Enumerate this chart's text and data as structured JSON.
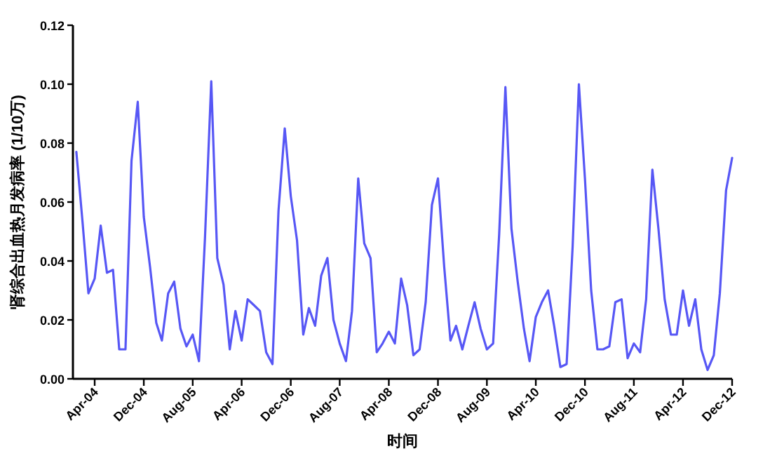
{
  "chart_data": {
    "type": "line",
    "xlabel": "时间",
    "ylabel": "肾综合出血热月发病率 (1/10万)",
    "x": [
      "2004-01",
      "2004-02",
      "2004-03",
      "2004-04",
      "2004-05",
      "2004-06",
      "2004-07",
      "2004-08",
      "2004-09",
      "2004-10",
      "2004-11",
      "2004-12",
      "2005-01",
      "2005-02",
      "2005-03",
      "2005-04",
      "2005-05",
      "2005-06",
      "2005-07",
      "2005-08",
      "2005-09",
      "2005-10",
      "2005-11",
      "2005-12",
      "2006-01",
      "2006-02",
      "2006-03",
      "2006-04",
      "2006-05",
      "2006-06",
      "2006-07",
      "2006-08",
      "2006-09",
      "2006-10",
      "2006-11",
      "2006-12",
      "2007-01",
      "2007-02",
      "2007-03",
      "2007-04",
      "2007-05",
      "2007-06",
      "2007-07",
      "2007-08",
      "2007-09",
      "2007-10",
      "2007-11",
      "2007-12",
      "2008-01",
      "2008-02",
      "2008-03",
      "2008-04",
      "2008-05",
      "2008-06",
      "2008-07",
      "2008-08",
      "2008-09",
      "2008-10",
      "2008-11",
      "2008-12",
      "2009-01",
      "2009-02",
      "2009-03",
      "2009-04",
      "2009-05",
      "2009-06",
      "2009-07",
      "2009-08",
      "2009-09",
      "2009-10",
      "2009-11",
      "2009-12",
      "2010-01",
      "2010-02",
      "2010-03",
      "2010-04",
      "2010-05",
      "2010-06",
      "2010-07",
      "2010-08",
      "2010-09",
      "2010-10",
      "2010-11",
      "2010-12",
      "2011-01",
      "2011-02",
      "2011-03",
      "2011-04",
      "2011-05",
      "2011-06",
      "2011-07",
      "2011-08",
      "2011-09",
      "2011-10",
      "2011-11",
      "2011-12",
      "2012-01",
      "2012-02",
      "2012-03",
      "2012-04",
      "2012-05",
      "2012-06",
      "2012-07",
      "2012-08",
      "2012-09",
      "2012-10",
      "2012-11",
      "2012-12"
    ],
    "series": [
      {
        "color": "#5757f5",
        "values": [
          0.077,
          0.053,
          0.029,
          0.034,
          0.052,
          0.036,
          0.037,
          0.01,
          0.01,
          0.074,
          0.094,
          0.055,
          0.038,
          0.019,
          0.013,
          0.029,
          0.033,
          0.017,
          0.011,
          0.015,
          0.006,
          0.048,
          0.101,
          0.041,
          0.032,
          0.01,
          0.023,
          0.013,
          0.027,
          0.025,
          0.023,
          0.009,
          0.005,
          0.057,
          0.085,
          0.062,
          0.047,
          0.015,
          0.024,
          0.018,
          0.035,
          0.041,
          0.02,
          0.012,
          0.006,
          0.023,
          0.068,
          0.046,
          0.041,
          0.009,
          0.012,
          0.016,
          0.012,
          0.034,
          0.025,
          0.008,
          0.01,
          0.026,
          0.059,
          0.068,
          0.038,
          0.013,
          0.018,
          0.01,
          0.018,
          0.026,
          0.017,
          0.01,
          0.012,
          0.049,
          0.099,
          0.051,
          0.033,
          0.017,
          0.006,
          0.021,
          0.026,
          0.03,
          0.018,
          0.004,
          0.005,
          0.045,
          0.1,
          0.068,
          0.03,
          0.01,
          0.01,
          0.011,
          0.026,
          0.027,
          0.007,
          0.012,
          0.009,
          0.027,
          0.071,
          0.051,
          0.027,
          0.015,
          0.015,
          0.03,
          0.018,
          0.027,
          0.01,
          0.003,
          0.008,
          0.029,
          0.064,
          0.075
        ]
      }
    ],
    "xlim": [
      "2003-12-15",
      "2012-12-01"
    ],
    "xticks": [
      {
        "value": "2004-04",
        "label": "Apr-04"
      },
      {
        "value": "2004-12",
        "label": "Dec-04"
      },
      {
        "value": "2005-08",
        "label": "Aug-05"
      },
      {
        "value": "2006-04",
        "label": "Apr-06"
      },
      {
        "value": "2006-12",
        "label": "Dec-06"
      },
      {
        "value": "2007-08",
        "label": "Aug-07"
      },
      {
        "value": "2008-04",
        "label": "Apr-08"
      },
      {
        "value": "2008-12",
        "label": "Dec-08"
      },
      {
        "value": "2009-08",
        "label": "Aug-09"
      },
      {
        "value": "2010-04",
        "label": "Apr-10"
      },
      {
        "value": "2010-12",
        "label": "Dec-10"
      },
      {
        "value": "2011-08",
        "label": "Aug-11"
      },
      {
        "value": "2012-04",
        "label": "Apr-12"
      },
      {
        "value": "2012-12",
        "label": "Dec-12"
      }
    ],
    "ylim": [
      0,
      0.12
    ],
    "yticks": [
      {
        "value": 0,
        "label": "0.00"
      },
      {
        "value": 0.02,
        "label": "0.02"
      },
      {
        "value": 0.04,
        "label": "0.04"
      },
      {
        "value": 0.06,
        "label": "0.06"
      },
      {
        "value": 0.08,
        "label": "0.08"
      },
      {
        "value": 0.1,
        "label": "0.10"
      },
      {
        "value": 0.12,
        "label": "0.12"
      }
    ]
  }
}
